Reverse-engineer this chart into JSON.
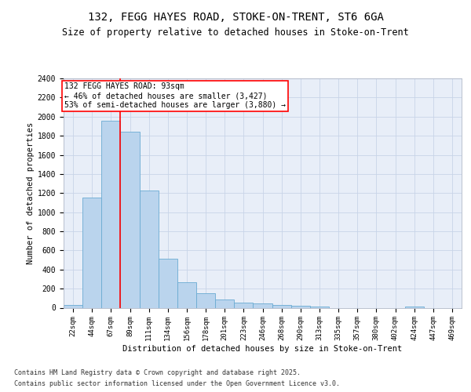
{
  "title_line1": "132, FEGG HAYES ROAD, STOKE-ON-TRENT, ST6 6GA",
  "title_line2": "Size of property relative to detached houses in Stoke-on-Trent",
  "xlabel": "Distribution of detached houses by size in Stoke-on-Trent",
  "ylabel": "Number of detached properties",
  "categories": [
    "22sqm",
    "44sqm",
    "67sqm",
    "89sqm",
    "111sqm",
    "134sqm",
    "156sqm",
    "178sqm",
    "201sqm",
    "223sqm",
    "246sqm",
    "268sqm",
    "290sqm",
    "313sqm",
    "335sqm",
    "357sqm",
    "380sqm",
    "402sqm",
    "424sqm",
    "447sqm",
    "469sqm"
  ],
  "values": [
    28,
    1155,
    1960,
    1845,
    1230,
    515,
    270,
    155,
    90,
    50,
    42,
    30,
    18,
    15,
    0,
    0,
    0,
    0,
    13,
    0,
    0
  ],
  "bar_color": "#bad4ed",
  "bar_edge_color": "#6aabd2",
  "vline_pos": 2.5,
  "vline_color": "red",
  "annotation_text": "132 FEGG HAYES ROAD: 93sqm\n← 46% of detached houses are smaller (3,427)\n53% of semi-detached houses are larger (3,880) →",
  "ylim": [
    0,
    2400
  ],
  "yticks": [
    0,
    200,
    400,
    600,
    800,
    1000,
    1200,
    1400,
    1600,
    1800,
    2000,
    2200,
    2400
  ],
  "grid_color": "#c8d4e8",
  "bg_color": "#e8eef8",
  "footer_line1": "Contains HM Land Registry data © Crown copyright and database right 2025.",
  "footer_line2": "Contains public sector information licensed under the Open Government Licence v3.0."
}
